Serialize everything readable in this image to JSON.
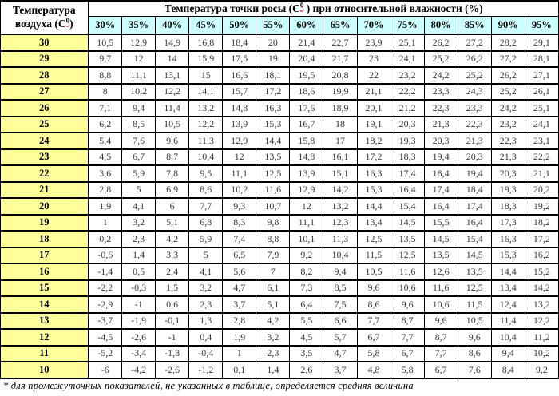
{
  "header": {
    "air": {
      "line1": "Температура",
      "line2_pre": "воздуха (С",
      "sup": "0",
      "line2_post": ")"
    },
    "title": {
      "pre": "Температура точки росы (С",
      "sup": "0",
      "post": " ) при относительной влажности (%)"
    },
    "humidity": [
      "30%",
      "35%",
      "40%",
      "45%",
      "50%",
      "55%",
      "60%",
      "65%",
      "70%",
      "75%",
      "80%",
      "85%",
      "90%",
      "95%"
    ]
  },
  "table": {
    "rows": [
      {
        "t": "30",
        "v": [
          "10,5",
          "12,9",
          "14,9",
          "16,8",
          "18,4",
          "20",
          "21,4",
          "22,7",
          "23,9",
          "25,1",
          "26,2",
          "27,2",
          "28,2",
          "29,1"
        ]
      },
      {
        "t": "29",
        "v": [
          "9,7",
          "12",
          "14",
          "15,9",
          "17,5",
          "19",
          "20,4",
          "21,7",
          "23",
          "24,1",
          "25,2",
          "26,2",
          "27,2",
          "28,1"
        ]
      },
      {
        "t": "28",
        "v": [
          "8,8",
          "11,1",
          "13,1",
          "15",
          "16,6",
          "18,1",
          "19,5",
          "20,8",
          "22",
          "23,2",
          "24,2",
          "25,2",
          "26,2",
          "27,1"
        ]
      },
      {
        "t": "27",
        "v": [
          "8",
          "10,2",
          "12,2",
          "14,1",
          "15,7",
          "17,2",
          "18,6",
          "19,9",
          "21,1",
          "22,2",
          "23,3",
          "24,3",
          "25,2",
          "26,1"
        ]
      },
      {
        "t": "26",
        "v": [
          "7,1",
          "9,4",
          "11,4",
          "13,2",
          "14,8",
          "16,3",
          "17,6",
          "18,9",
          "20,1",
          "21,2",
          "22,3",
          "23,3",
          "24,2",
          "25,1"
        ]
      },
      {
        "t": "25",
        "v": [
          "6,2",
          "8,5",
          "10,5",
          "12,2",
          "13,9",
          "15,3",
          "16,7",
          "18",
          "19,1",
          "20,3",
          "21,3",
          "22,3",
          "23,2",
          "24,1"
        ]
      },
      {
        "t": "24",
        "v": [
          "5,4",
          "7,6",
          "9,6",
          "11,3",
          "12,9",
          "14,4",
          "15,8",
          "17",
          "18,2",
          "19,3",
          "20,3",
          "21,3",
          "22,3",
          "23,1"
        ]
      },
      {
        "t": "23",
        "v": [
          "4,5",
          "6,7",
          "8,7",
          "10,4",
          "12",
          "13,5",
          "14,8",
          "16,1",
          "17,2",
          "18,3",
          "19,4",
          "20,3",
          "21,3",
          "22,2"
        ]
      },
      {
        "t": "22",
        "v": [
          "3,6",
          "5,9",
          "7,8",
          "9,5",
          "11,1",
          "12,5",
          "13,9",
          "15,1",
          "16,3",
          "17,4",
          "18,4",
          "19,4",
          "20,3",
          "21,1"
        ]
      },
      {
        "t": "21",
        "v": [
          "2,8",
          "5",
          "6,9",
          "8,6",
          "10,2",
          "11,6",
          "12,9",
          "14,2",
          "15,3",
          "16,4",
          "17,4",
          "18,4",
          "19,3",
          "20,2"
        ]
      },
      {
        "t": "20",
        "v": [
          "1,9",
          "4,1",
          "6",
          "7,7",
          "9,3",
          "10,7",
          "12",
          "13,2",
          "14,4",
          "15,4",
          "16,4",
          "17,4",
          "18,3",
          "19,2"
        ]
      },
      {
        "t": "19",
        "v": [
          "1",
          "3,2",
          "5,1",
          "6,8",
          "8,3",
          "9,8",
          "11,1",
          "12,3",
          "13,4",
          "14,5",
          "15,5",
          "16,4",
          "17,3",
          "18,2"
        ]
      },
      {
        "t": "18",
        "v": [
          "0,2",
          "2,3",
          "4,2",
          "5,9",
          "7,4",
          "8,8",
          "10,1",
          "11,3",
          "12,5",
          "13,5",
          "14,5",
          "15,4",
          "16,3",
          "17,2"
        ]
      },
      {
        "t": "17",
        "v": [
          "-0,6",
          "1,4",
          "3,3",
          "5",
          "6,5",
          "7,9",
          "9,2",
          "10,4",
          "11,5",
          "12,5",
          "13,5",
          "14,5",
          "15,3",
          "16,2"
        ]
      },
      {
        "t": "16",
        "v": [
          "-1,4",
          "0,5",
          "2,4",
          "4,1",
          "5,6",
          "7",
          "8,2",
          "9,4",
          "10,5",
          "11,6",
          "12,6",
          "13,5",
          "14,4",
          "15,2"
        ]
      },
      {
        "t": "15",
        "v": [
          "-2,2",
          "-0,3",
          "1,5",
          "3,2",
          "4,7",
          "6,1",
          "7,3",
          "8,5",
          "9,6",
          "10,6",
          "11,6",
          "12,5",
          "13,4",
          "14,2"
        ]
      },
      {
        "t": "14",
        "v": [
          "-2,9",
          "-1",
          "0,6",
          "2,3",
          "3,7",
          "5,1",
          "6,4",
          "7,5",
          "8,6",
          "9,6",
          "10,6",
          "11,5",
          "12,4",
          "13,2"
        ]
      },
      {
        "t": "13",
        "v": [
          "-3,7",
          "-1,9",
          "-0,1",
          "1,3",
          "2,8",
          "4,2",
          "5,5",
          "6,6",
          "7,7",
          "8,7",
          "9,6",
          "10,5",
          "11,4",
          "12,2"
        ]
      },
      {
        "t": "12",
        "v": [
          "-4,5",
          "-2,6",
          "-1",
          "0,4",
          "1,9",
          "3,2",
          "4,5",
          "5,7",
          "6,7",
          "7,7",
          "8,7",
          "9,6",
          "10,4",
          "11,2"
        ]
      },
      {
        "t": "11",
        "v": [
          "-5,2",
          "-3,4",
          "-1,8",
          "-0,4",
          "1",
          "2,3",
          "3,5",
          "4,7",
          "5,8",
          "6,7",
          "7,7",
          "8,6",
          "9,4",
          "10,2"
        ]
      },
      {
        "t": "10",
        "v": [
          "-6",
          "-4,2",
          "-2,6",
          "-1,2",
          "0,1",
          "1,4",
          "2,6",
          "3,7",
          "4,8",
          "5,8",
          "6,7",
          "7,6",
          "8,4",
          "9,2"
        ]
      }
    ]
  },
  "footnote": "* для промежуточных показателей, не указанных в таблице, определяется средняя величина",
  "colors": {
    "air_col_bg": "#ffff99",
    "humidity_header_bg": "#ccffff",
    "squiggle": "#ff0000",
    "data_text": "#3a3a3a",
    "border": "#000000"
  }
}
